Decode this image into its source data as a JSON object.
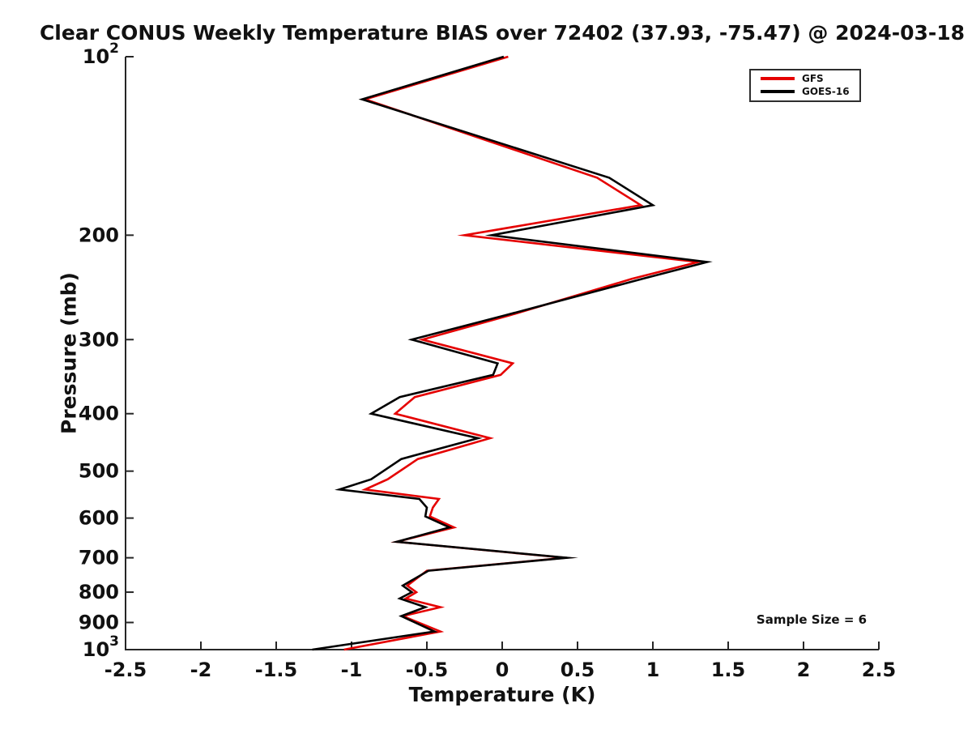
{
  "title": "Clear CONUS Weekly Temperature BIAS over 72402 (37.93, -75.47) @ 2024-03-18",
  "annotation": "Sample Size = 6",
  "legend": {
    "entries": [
      {
        "label": "GFS",
        "color": "#e50000"
      },
      {
        "label": "GOES-16",
        "color": "#000000"
      }
    ]
  },
  "colors": {
    "gfs": "#e50000",
    "goes16": "#000000",
    "axis": "#262626",
    "text": "#111111",
    "background": "#ffffff"
  },
  "chart_data": {
    "type": "line",
    "title": "Clear CONUS Weekly Temperature BIAS over 72402 (37.93, -75.47) @ 2024-03-18",
    "xlabel": "Temperature (K)",
    "ylabel": "Pressure (mb)",
    "xlim": [
      -2.5,
      2.5
    ],
    "ylim": [
      100,
      1000
    ],
    "yscale": "log",
    "y_inverted": true,
    "grid": false,
    "legend_position": "top-right",
    "annotation": "Sample Size = 6",
    "x_ticks": [
      -2.5,
      -2,
      -1.5,
      -1,
      -0.5,
      0,
      0.5,
      1,
      1.5,
      2,
      2.5
    ],
    "x_tick_labels": [
      "-2.5",
      "-2",
      "-1.5",
      "-1",
      "-0.5",
      "0",
      "0.5",
      "1",
      "1.5",
      "2",
      "2.5"
    ],
    "y_ticks": [
      100,
      200,
      300,
      400,
      500,
      600,
      700,
      800,
      900,
      1000
    ],
    "y_tick_labels": [
      "10^2",
      "200",
      "300",
      "400",
      "500",
      "600",
      "700",
      "800",
      "900",
      "10^3"
    ],
    "pressure_levels": [
      100,
      118,
      160,
      178,
      200,
      222,
      237,
      273,
      300,
      329,
      344,
      375,
      400,
      440,
      477,
      516,
      537,
      557,
      576,
      596,
      622,
      658,
      700,
      736,
      780,
      800,
      820,
      848,
      878,
      932,
      1000
    ],
    "series": [
      {
        "name": "GFS",
        "color": "#e50000",
        "values": [
          0.04,
          -0.91,
          0.63,
          0.92,
          -0.25,
          1.3,
          0.86,
          0.05,
          -0.53,
          0.07,
          -0.01,
          -0.58,
          -0.71,
          -0.08,
          -0.56,
          -0.76,
          -0.91,
          -0.42,
          -0.46,
          -0.48,
          -0.32,
          -0.7,
          0.42,
          -0.5,
          -0.63,
          -0.57,
          -0.64,
          -0.41,
          -0.66,
          -0.41,
          -1.05
        ]
      },
      {
        "name": "GOES-16",
        "color": "#000000",
        "values": [
          0.01,
          -0.93,
          0.71,
          1.0,
          -0.07,
          1.36,
          0.93,
          0.02,
          -0.6,
          -0.03,
          -0.06,
          -0.68,
          -0.87,
          -0.16,
          -0.67,
          -0.87,
          -1.08,
          -0.55,
          -0.5,
          -0.51,
          -0.35,
          -0.7,
          0.43,
          -0.49,
          -0.66,
          -0.6,
          -0.68,
          -0.51,
          -0.67,
          -0.45,
          -1.26
        ]
      }
    ]
  }
}
